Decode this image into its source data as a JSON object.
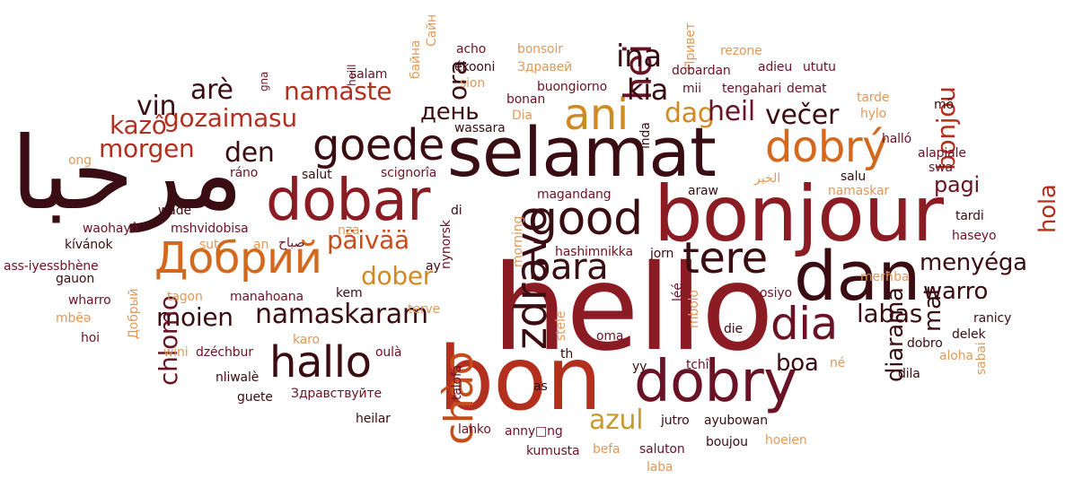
{
  "palette": {
    "dark_maroon": "#3a0d12",
    "maroon": "#6a1326",
    "crimson": "#8c1c24",
    "red": "#b3301f",
    "rust": "#c44d1b",
    "orange": "#d2691e",
    "amber": "#d08a24",
    "gold": "#c99a2e",
    "peach": "#e0995a"
  },
  "words": [
    {
      "t": "مرحبا",
      "c": "dark_maroon"
    },
    {
      "t": "hello",
      "c": "crimson"
    },
    {
      "t": "bonjour",
      "c": "crimson"
    },
    {
      "t": "selamat",
      "c": "dark_maroon"
    },
    {
      "t": "bon",
      "c": "red"
    },
    {
      "t": "dan",
      "c": "dark_maroon"
    },
    {
      "t": "dobar",
      "c": "crimson"
    },
    {
      "t": "dobry",
      "c": "maroon"
    },
    {
      "t": "Добрий",
      "c": "orange"
    },
    {
      "t": "goede",
      "c": "dark_maroon"
    },
    {
      "t": "good",
      "c": "dark_maroon"
    },
    {
      "t": "zdravo",
      "c": "dark_maroon"
    },
    {
      "t": "chào",
      "c": "rust"
    },
    {
      "t": "dobrý",
      "c": "orange"
    },
    {
      "t": "hallo",
      "c": "dark_maroon"
    },
    {
      "t": "ani",
      "c": "amber"
    },
    {
      "t": "tere",
      "c": "dark_maroon"
    },
    {
      "t": "dia",
      "c": "maroon"
    },
    {
      "t": "bara",
      "c": "dark_maroon"
    },
    {
      "t": "namaskaram",
      "c": "dark_maroon"
    },
    {
      "t": "azul",
      "c": "gold"
    },
    {
      "t": "menyéga",
      "c": "dark_maroon"
    },
    {
      "t": "hola",
      "c": "red"
    },
    {
      "t": "warro",
      "c": "dark_maroon"
    },
    {
      "t": "labas",
      "c": "dark_maroon"
    },
    {
      "t": "boa",
      "c": "dark_maroon"
    },
    {
      "t": "moien",
      "c": "dark_maroon"
    },
    {
      "t": "päivää",
      "c": "rust"
    },
    {
      "t": "dober",
      "c": "amber"
    },
    {
      "t": "chlomo",
      "c": "maroon"
    },
    {
      "t": "gozaimasu",
      "c": "red"
    },
    {
      "t": "namaste",
      "c": "red"
    },
    {
      "t": "morgen",
      "c": "red"
    },
    {
      "t": "kazô",
      "c": "red"
    },
    {
      "t": "den",
      "c": "dark_maroon"
    },
    {
      "t": "vin",
      "c": "dark_maroon"
    },
    {
      "t": "arè",
      "c": "dark_maroon"
    },
    {
      "t": "день",
      "c": "dark_maroon"
    },
    {
      "t": "ora",
      "c": "dark_maroon"
    },
    {
      "t": "hei",
      "c": "maroon"
    },
    {
      "t": "ina",
      "c": "dark_maroon"
    },
    {
      "t": "kia",
      "c": "dark_maroon"
    },
    {
      "t": "dag",
      "c": "amber"
    },
    {
      "t": "heil",
      "c": "maroon"
    },
    {
      "t": "večer",
      "c": "dark_maroon"
    },
    {
      "t": "pagi",
      "c": "maroon"
    },
    {
      "t": "bonjou",
      "c": "red"
    },
    {
      "t": "diarama",
      "c": "dark_maroon"
    },
    {
      "t": "mat",
      "c": "dark_maroon"
    },
    {
      "t": "salam",
      "c": "maroon"
    },
    {
      "t": "heill",
      "c": "maroon"
    },
    {
      "t": "gna",
      "c": "maroon"
    },
    {
      "t": "acho",
      "c": "maroon"
    },
    {
      "t": "bonsoir",
      "c": "peach"
    },
    {
      "t": "Привет",
      "c": "peach"
    },
    {
      "t": "rezone",
      "c": "peach"
    },
    {
      "t": "ékooni",
      "c": "dark_maroon"
    },
    {
      "t": "Здравей",
      "c": "peach"
    },
    {
      "t": "sion",
      "c": "peach"
    },
    {
      "t": "dobardan",
      "c": "maroon"
    },
    {
      "t": "adieu",
      "c": "maroon"
    },
    {
      "t": "ututu",
      "c": "maroon"
    },
    {
      "t": "bonan",
      "c": "maroon"
    },
    {
      "t": "buongiorno",
      "c": "maroon"
    },
    {
      "t": "mii",
      "c": "maroon"
    },
    {
      "t": "tengahari",
      "c": "maroon"
    },
    {
      "t": "demat",
      "c": "maroon"
    },
    {
      "t": "tarde",
      "c": "peach"
    },
    {
      "t": "Dia",
      "c": "peach"
    },
    {
      "t": "wassara",
      "c": "dark_maroon"
    },
    {
      "t": "hylo",
      "c": "peach"
    },
    {
      "t": "mô",
      "c": "dark_maroon"
    },
    {
      "t": "ong",
      "c": "peach"
    },
    {
      "t": "ráno",
      "c": "maroon"
    },
    {
      "t": "salut",
      "c": "dark_maroon"
    },
    {
      "t": "scignorîa",
      "c": "maroon"
    },
    {
      "t": "halló",
      "c": "maroon"
    },
    {
      "t": "alapiale",
      "c": "maroon"
    },
    {
      "t": "swa",
      "c": "maroon"
    },
    {
      "t": "salu",
      "c": "dark_maroon"
    },
    {
      "t": "الخير",
      "c": "peach"
    },
    {
      "t": "namaskar",
      "c": "peach"
    },
    {
      "t": "wåde",
      "c": "dark_maroon"
    },
    {
      "t": "mshvidobisa",
      "c": "maroon"
    },
    {
      "t": "magandang",
      "c": "maroon"
    },
    {
      "t": "araw",
      "c": "dark_maroon"
    },
    {
      "t": "waohayô",
      "c": "maroon"
    },
    {
      "t": "nza",
      "c": "peach"
    },
    {
      "t": "صباح",
      "c": "maroon"
    },
    {
      "t": "tardi",
      "c": "dark_maroon"
    },
    {
      "t": "kívánok",
      "c": "dark_maroon"
    },
    {
      "t": "sut",
      "c": "peach"
    },
    {
      "t": "an",
      "c": "peach"
    },
    {
      "t": "hashimnikka",
      "c": "maroon"
    },
    {
      "t": "jorn",
      "c": "dark_maroon"
    },
    {
      "t": "haseyo",
      "c": "maroon"
    },
    {
      "t": "ass-iyessbhène",
      "c": "maroon"
    },
    {
      "t": "ay",
      "c": "dark_maroon"
    },
    {
      "t": "gauon",
      "c": "dark_maroon"
    },
    {
      "t": "merħba",
      "c": "peach"
    },
    {
      "t": "wharro",
      "c": "maroon"
    },
    {
      "t": "tagon",
      "c": "peach"
    },
    {
      "t": "manahoana",
      "c": "maroon"
    },
    {
      "t": "kem",
      "c": "dark_maroon"
    },
    {
      "t": "terve",
      "c": "peach"
    },
    {
      "t": "léé",
      "c": "maroon"
    },
    {
      "t": "osiyo",
      "c": "maroon"
    },
    {
      "t": "mbẽə",
      "c": "peach"
    },
    {
      "t": "ranicy",
      "c": "dark_maroon"
    },
    {
      "t": "hoi",
      "c": "maroon"
    },
    {
      "t": "karo",
      "c": "peach"
    },
    {
      "t": "oulà",
      "c": "maroon"
    },
    {
      "t": "oma",
      "c": "maroon"
    },
    {
      "t": "die",
      "c": "dark_maroon"
    },
    {
      "t": "delek",
      "c": "dark_maroon"
    },
    {
      "t": "wini",
      "c": "peach"
    },
    {
      "t": "dzéchbur",
      "c": "maroon"
    },
    {
      "t": "dobro",
      "c": "dark_maroon"
    },
    {
      "t": "th",
      "c": "dark_maroon"
    },
    {
      "t": "yy",
      "c": "dark_maroon"
    },
    {
      "t": "tchî",
      "c": "maroon"
    },
    {
      "t": "né",
      "c": "peach"
    },
    {
      "t": "dila",
      "c": "dark_maroon"
    },
    {
      "t": "aloha",
      "c": "peach"
    },
    {
      "t": "nliwalè",
      "c": "dark_maroon"
    },
    {
      "t": "as",
      "c": "dark_maroon"
    },
    {
      "t": "guete",
      "c": "dark_maroon"
    },
    {
      "t": "Здравствуйте",
      "c": "maroon"
    },
    {
      "t": "heilar",
      "c": "dark_maroon"
    },
    {
      "t": "lahko",
      "c": "maroon"
    },
    {
      "t": "anny□ng",
      "c": "maroon"
    },
    {
      "t": "jutro",
      "c": "dark_maroon"
    },
    {
      "t": "ayubowan",
      "c": "dark_maroon"
    },
    {
      "t": "kumusta",
      "c": "maroon"
    },
    {
      "t": "befa",
      "c": "peach"
    },
    {
      "t": "saluton",
      "c": "maroon"
    },
    {
      "t": "boujou",
      "c": "dark_maroon"
    },
    {
      "t": "hoeien",
      "c": "peach"
    },
    {
      "t": "laba",
      "c": "peach"
    },
    {
      "t": "байна",
      "c": "peach"
    },
    {
      "t": "Сайн",
      "c": "peach"
    },
    {
      "t": "Добрый",
      "c": "peach"
    },
    {
      "t": "inda",
      "c": "dark_maroon"
    },
    {
      "t": "di",
      "c": "dark_maroon"
    },
    {
      "t": "nynorsk",
      "c": "maroon"
    },
    {
      "t": "morning",
      "c": "peach"
    },
    {
      "t": "mbolo",
      "c": "peach"
    },
    {
      "t": "stele",
      "c": "peach"
    },
    {
      "t": "talofa",
      "c": "maroon"
    },
    {
      "t": "sabai",
      "c": "peach"
    }
  ]
}
